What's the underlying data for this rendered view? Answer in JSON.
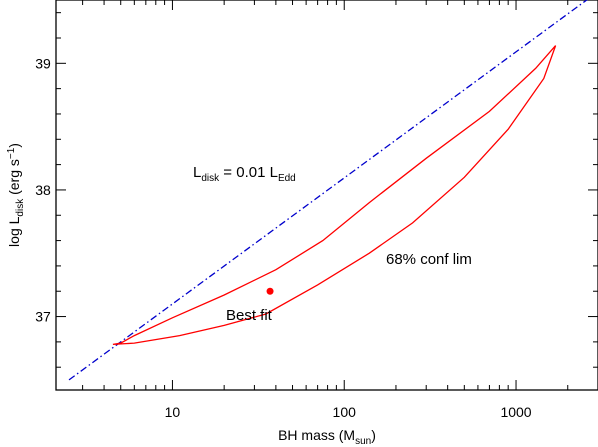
{
  "chart_data": {
    "type": "line",
    "xlabel": {
      "main": "BH mass (M",
      "sub": "sun",
      "tail": ")"
    },
    "ylabel": {
      "main": "log L",
      "sub": "disk",
      "mid": " (erg s",
      "sup": "−1",
      "tail": ")"
    },
    "xscale": "log",
    "xlim": [
      2.1,
      3000
    ],
    "ylim": [
      36.42,
      39.5
    ],
    "x_ticks": [
      {
        "value": 10,
        "label": "10"
      },
      {
        "value": 100,
        "label": "100"
      },
      {
        "value": 1000,
        "label": "1000"
      }
    ],
    "y_ticks": [
      {
        "value": 37,
        "label": "37"
      },
      {
        "value": 38,
        "label": "38"
      },
      {
        "value": 39,
        "label": "39"
      }
    ],
    "edd_line": {
      "color": "#0000cc",
      "style": "dash-dot",
      "x": [
        2.5,
        2700
      ],
      "y": [
        36.5,
        39.52
      ]
    },
    "contour": {
      "color": "#ff0000",
      "x": [
        4.5,
        5,
        6,
        10,
        20,
        40,
        75,
        140,
        300,
        700,
        1300,
        1700,
        1450,
        900,
        500,
        250,
        140,
        70,
        35,
        20,
        11,
        6,
        4.5
      ],
      "y": [
        36.78,
        36.79,
        36.85,
        36.99,
        37.17,
        37.37,
        37.6,
        37.9,
        38.25,
        38.62,
        38.96,
        39.14,
        38.88,
        38.48,
        38.1,
        37.74,
        37.5,
        37.25,
        37.02,
        36.93,
        36.85,
        36.79,
        36.78
      ]
    },
    "best_fit": {
      "x": 37,
      "y": 37.2,
      "color": "#ff0000"
    },
    "annotations": {
      "edd_main": "L",
      "edd_sub1": "disk",
      "edd_mid": " = 0.01 L",
      "edd_sub2": "Edd",
      "conf": "68% conf lim",
      "best": "Best fit"
    }
  }
}
